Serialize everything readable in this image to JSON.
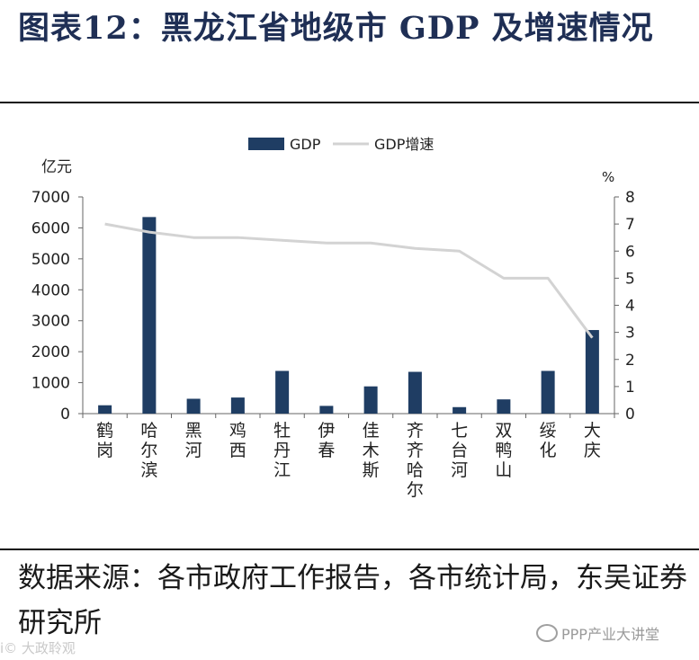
{
  "title": "图表12：黑龙江省地级市 GDP 及增速情况",
  "source": "数据来源：各市政府工作报告，各市统计局，东吴证券研究所",
  "watermark_right": "PPP产业大讲堂",
  "watermark_left": "i© 大政聆观",
  "colors": {
    "bar": "#1f3d63",
    "line": "#d3d3d3",
    "axis": "#666666"
  },
  "chart_data": {
    "type": "bar",
    "categories": [
      "鹤岗",
      "哈尔滨",
      "黑河",
      "鸡西",
      "牡丹江",
      "伊春",
      "佳木斯",
      "齐齐哈尔",
      "七台河",
      "双鸭山",
      "绥化",
      "大庆"
    ],
    "series": [
      {
        "name": "GDP",
        "type": "bar",
        "axis": "left",
        "values": [
          270,
          6350,
          480,
          520,
          1380,
          250,
          880,
          1350,
          210,
          460,
          1380,
          2700
        ]
      },
      {
        "name": "GDP增速",
        "type": "line",
        "axis": "right",
        "values": [
          7.0,
          6.7,
          6.5,
          6.5,
          6.4,
          6.3,
          6.3,
          6.1,
          6.0,
          5.0,
          5.0,
          2.8
        ]
      }
    ],
    "ylabel": "亿元",
    "y2label": "%",
    "ylim": [
      0,
      7000
    ],
    "y2lim": [
      0,
      8
    ],
    "yticks": [
      "0",
      "1000",
      "2000",
      "3000",
      "4000",
      "5000",
      "6000",
      "7000"
    ],
    "y2ticks": [
      "0",
      "1",
      "2",
      "3",
      "4",
      "5",
      "6",
      "7",
      "8"
    ],
    "legend": {
      "position": "top-center",
      "entries": [
        "GDP",
        "GDP增速"
      ]
    },
    "grid": false
  }
}
